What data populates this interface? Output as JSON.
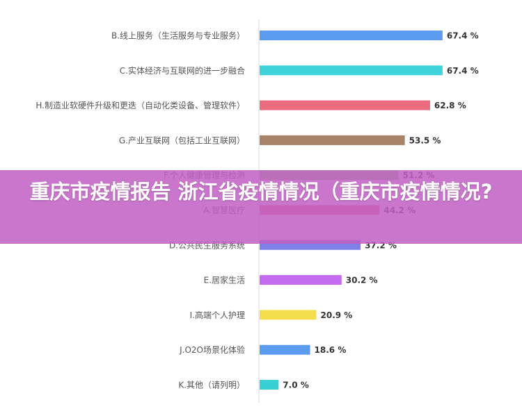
{
  "banner": {
    "title": "重庆市疫情报告 浙江省疫情情况（重庆市疫情情况?"
  },
  "chart_data": {
    "type": "bar",
    "orientation": "horizontal",
    "title": "",
    "xlabel": "",
    "ylabel": "",
    "value_suffix": " %",
    "xlim": [
      0,
      100
    ],
    "grid": false,
    "categories": [
      "B.线上服务（生活服务与专业服务）",
      "C.实体经济与互联网的进一步融合",
      "H.制造业软硬件升级和更迭（自动化类设备、管理软件）",
      "G.产业互联网（包括工业互联网）",
      "F.个人健康管理与检测",
      "A.智慧医疗",
      "D.公共民生服务系统",
      "E.居家生活",
      "I.高端个人护理",
      "J.O2O场景化体验",
      "K.其他（请列明）"
    ],
    "values": [
      67.4,
      67.4,
      62.8,
      53.5,
      51.2,
      44.2,
      37.2,
      30.2,
      20.9,
      18.6,
      7.0
    ],
    "value_labels": [
      "67.4 %",
      "67.4 %",
      "62.8 %",
      "53.5 %",
      "51.2 %",
      "44.2 %",
      "37.2 %",
      "30.2 %",
      "20.9 %",
      "18.6 %",
      "7.0 %"
    ],
    "colors": [
      "#5b9cf0",
      "#3dd3d8",
      "#ea6b7e",
      "#a9826a",
      "#8fd27a",
      "#ec6d82",
      "#7f80e8",
      "#c46cf0",
      "#f4de4e",
      "#5b9cf0",
      "#38d0d6"
    ]
  }
}
